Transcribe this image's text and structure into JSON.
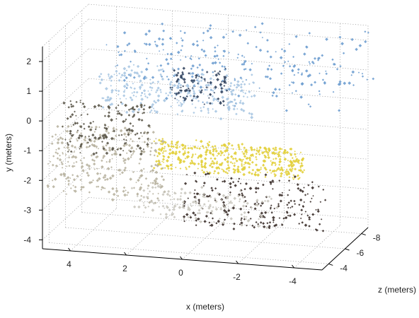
{
  "chart_data": {
    "type": "scatter",
    "projection": "3d",
    "title": "",
    "xlabel": "x (meters)",
    "ylabel": "y (meters)",
    "zlabel": "z (meters)",
    "x_ticks": [
      "4",
      "2",
      "0",
      "-2",
      "-4"
    ],
    "y_ticks": [
      "-4",
      "-3",
      "-2",
      "-1",
      "0",
      "1",
      "2"
    ],
    "z_ticks": [
      "-4",
      "-6",
      "-8"
    ],
    "xlim": [
      5,
      -5
    ],
    "ylim": [
      -4.3,
      2.5
    ],
    "zlim": [
      -3.2,
      -8.8
    ],
    "grid": true,
    "point_clusters": [
      {
        "name": "",
        "color": "#6f9fd0",
        "count": 260,
        "x": [
          -5.5,
          3.0
        ],
        "y": [
          0.8,
          2.6
        ],
        "z": [
          -8.5,
          -3.5
        ]
      },
      {
        "name": "",
        "color": "#a9c6e2",
        "count": 300,
        "x": [
          -2.0,
          3.5
        ],
        "y": [
          0.1,
          1.4
        ],
        "z": [
          -6.0,
          -4.5
        ]
      },
      {
        "name": "",
        "color": "#34455f",
        "count": 90,
        "x": [
          -1.0,
          1.0
        ],
        "y": [
          0.4,
          1.5
        ],
        "z": [
          -6.0,
          -5.0
        ]
      },
      {
        "name": "",
        "color": "#e2cf3a",
        "count": 450,
        "x": [
          -3.8,
          1.5
        ],
        "y": [
          -1.8,
          -0.8
        ],
        "z": [
          -5.2,
          -4.8
        ]
      },
      {
        "name": "",
        "color": "#b8b2a0",
        "count": 320,
        "x": [
          1.0,
          5.0
        ],
        "y": [
          -2.6,
          -0.3
        ],
        "z": [
          -4.6,
          -3.6
        ]
      },
      {
        "name": "",
        "color": "#5a5548",
        "count": 160,
        "x": [
          1.5,
          4.5
        ],
        "y": [
          -1.2,
          0.5
        ],
        "z": [
          -4.6,
          -3.8
        ]
      },
      {
        "name": "",
        "color": "#3b2f2a",
        "count": 220,
        "x": [
          -4.5,
          0.5
        ],
        "y": [
          -3.6,
          -1.8
        ],
        "z": [
          -5.4,
          -4.6
        ]
      },
      {
        "name": "",
        "color": "#c9c6be",
        "count": 160,
        "x": [
          -3.0,
          2.0
        ],
        "y": [
          -3.2,
          -2.2
        ],
        "z": [
          -4.6,
          -3.8
        ]
      }
    ]
  }
}
